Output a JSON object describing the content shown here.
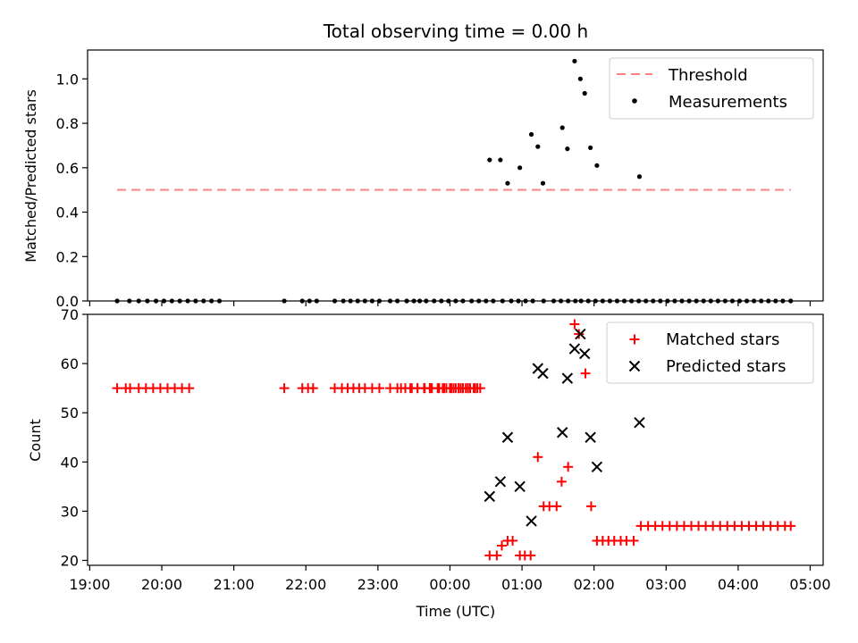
{
  "chart_data": [
    {
      "type": "scatter",
      "title": "Total observing time = 0.00 h",
      "ylabel": "Matched/Predicted stars",
      "ylim": [
        0,
        1.13
      ],
      "yticks": [
        0.0,
        0.2,
        0.4,
        0.6,
        0.8,
        1.0
      ],
      "ytick_labels": [
        "0.0",
        "0.2",
        "0.4",
        "0.6",
        "0.8",
        "1.0"
      ],
      "xlim": [
        -5.03,
        5.18
      ],
      "legend": {
        "position": "top-right",
        "entries": [
          "Threshold",
          "Measurements"
        ]
      },
      "threshold": {
        "name": "Threshold",
        "y": 0.5,
        "x_range": [
          -4.62,
          4.73
        ],
        "color": "#ff7f7f"
      },
      "series": [
        {
          "name": "Measurements",
          "color": "#000000",
          "x": [
            -4.62,
            -4.45,
            -4.32,
            -4.2,
            -4.08,
            -3.97,
            -3.86,
            -3.75,
            -3.64,
            -3.53,
            -3.42,
            -3.31,
            -3.2,
            -2.3,
            -2.05,
            -1.95,
            -1.85,
            -1.6,
            -1.48,
            -1.38,
            -1.28,
            -1.18,
            -1.08,
            -0.98,
            -0.83,
            -0.73,
            -0.6,
            -0.5,
            -0.42,
            -0.33,
            -0.22,
            -0.12,
            -0.02,
            0.08,
            0.18,
            0.3,
            0.4,
            0.5,
            0.6,
            0.73,
            0.85,
            0.95,
            1.05,
            1.15,
            1.3,
            1.44,
            1.54,
            1.64,
            1.74,
            1.82,
            1.92,
            2.02,
            2.12,
            2.22,
            2.32,
            2.42,
            2.52,
            2.62,
            2.72,
            2.82,
            2.92,
            3.02,
            3.12,
            3.22,
            3.32,
            3.42,
            3.52,
            3.62,
            3.72,
            3.82,
            3.92,
            4.02,
            4.12,
            4.22,
            4.32,
            4.42,
            4.52,
            4.62,
            4.73,
            0.55,
            0.7,
            0.8,
            0.97,
            1.13,
            1.22,
            1.29,
            1.56,
            1.63,
            1.73,
            1.81,
            1.87,
            1.95,
            2.04,
            2.63
          ],
          "y": [
            0,
            0,
            0,
            0,
            0,
            0,
            0,
            0,
            0,
            0,
            0,
            0,
            0,
            0,
            0,
            0,
            0,
            0,
            0,
            0,
            0,
            0,
            0,
            0,
            0,
            0,
            0,
            0,
            0,
            0,
            0,
            0,
            0,
            0,
            0,
            0,
            0,
            0,
            0,
            0,
            0,
            0,
            0,
            0,
            0,
            0,
            0,
            0,
            0,
            0,
            0,
            0,
            0,
            0,
            0,
            0,
            0,
            0,
            0,
            0,
            0,
            0,
            0,
            0,
            0,
            0,
            0,
            0,
            0,
            0,
            0,
            0,
            0,
            0,
            0,
            0,
            0,
            0,
            0,
            0.635,
            0.635,
            0.53,
            0.6,
            0.75,
            0.695,
            0.53,
            0.78,
            0.685,
            1.08,
            1.0,
            0.935,
            0.69,
            0.61,
            0.56
          ]
        }
      ]
    },
    {
      "type": "scatter",
      "xlabel": "Time (UTC)",
      "ylabel": "Count",
      "ylim": [
        19,
        70
      ],
      "yticks": [
        20,
        30,
        40,
        50,
        60,
        70
      ],
      "ytick_labels": [
        "20",
        "30",
        "40",
        "50",
        "60",
        "70"
      ],
      "xlim": [
        -5.03,
        5.18
      ],
      "xticks": [
        -5,
        -4,
        -3,
        -2,
        -1,
        0,
        1,
        2,
        3,
        4,
        5
      ],
      "xtick_labels": [
        "19:00",
        "20:00",
        "21:00",
        "22:00",
        "23:00",
        "00:00",
        "01:00",
        "02:00",
        "03:00",
        "04:00",
        "05:00"
      ],
      "legend": {
        "position": "top-right",
        "entries": [
          "Matched stars",
          "Predicted stars"
        ]
      },
      "series": [
        {
          "name": "Matched stars",
          "marker": "+",
          "color": "#ff0000",
          "x": [
            -4.62,
            -4.5,
            -4.44,
            -4.32,
            -4.22,
            -4.12,
            -4.02,
            -3.92,
            -3.82,
            -3.72,
            -3.62,
            -2.3,
            -2.05,
            -1.97,
            -1.9,
            -1.6,
            -1.5,
            -1.42,
            -1.34,
            -1.26,
            -1.18,
            -1.08,
            -0.98,
            -0.83,
            -0.73,
            -0.62,
            -0.53,
            -0.45,
            -0.36,
            -0.27,
            -0.17,
            -0.08,
            0.02,
            0.12,
            0.22,
            -0.28,
            -0.1,
            0.0,
            0.08,
            0.18,
            0.28,
            0.38,
            0.12,
            0.18,
            0.25,
            0.33,
            0.42,
            -0.68,
            -0.55,
            -0.45,
            -0.35,
            -0.25,
            -0.15,
            -0.05,
            0.05,
            0.15,
            0.25,
            0.35,
            0.55,
            0.65,
            0.72,
            0.8,
            0.87,
            0.97,
            1.04,
            1.12,
            1.22,
            1.3,
            1.38,
            1.48,
            1.55,
            1.64,
            1.73,
            1.79,
            1.88,
            1.96,
            2.04,
            2.12,
            2.2,
            2.28,
            2.37,
            2.45,
            2.55,
            2.65,
            2.75,
            2.85,
            2.95,
            3.05,
            3.15,
            3.25,
            3.35,
            3.45,
            3.55,
            3.65,
            3.75,
            3.85,
            3.95,
            4.05,
            4.15,
            4.25,
            4.35,
            4.45,
            4.55,
            4.65,
            4.73
          ],
          "y": [
            55,
            55,
            55,
            55,
            55,
            55,
            55,
            55,
            55,
            55,
            55,
            55,
            55,
            55,
            55,
            55,
            55,
            55,
            55,
            55,
            55,
            55,
            55,
            55,
            55,
            55,
            55,
            55,
            55,
            55,
            55,
            55,
            55,
            55,
            55,
            55,
            55,
            55,
            55,
            55,
            55,
            55,
            55,
            55,
            55,
            55,
            55,
            55,
            55,
            55,
            55,
            55,
            55,
            55,
            55,
            55,
            55,
            55,
            21,
            21,
            23,
            24,
            24,
            21,
            21,
            21,
            41,
            31,
            31,
            31,
            36,
            39,
            68,
            66,
            58,
            31,
            24,
            24,
            24,
            24,
            24,
            24,
            24,
            27,
            27,
            27,
            27,
            27,
            27,
            27,
            27,
            27,
            27,
            27,
            27,
            27,
            27,
            27,
            27,
            27,
            27,
            27,
            27,
            27,
            27
          ]
        },
        {
          "name": "Predicted stars",
          "marker": "x",
          "color": "#000000",
          "x": [
            0.55,
            0.7,
            0.8,
            0.97,
            1.13,
            1.22,
            1.29,
            1.56,
            1.63,
            1.73,
            1.81,
            1.87,
            1.95,
            2.04,
            2.63
          ],
          "y": [
            33,
            36,
            45,
            35,
            28,
            59,
            58,
            46,
            57,
            63,
            66,
            62,
            45,
            39,
            48
          ]
        }
      ]
    }
  ]
}
